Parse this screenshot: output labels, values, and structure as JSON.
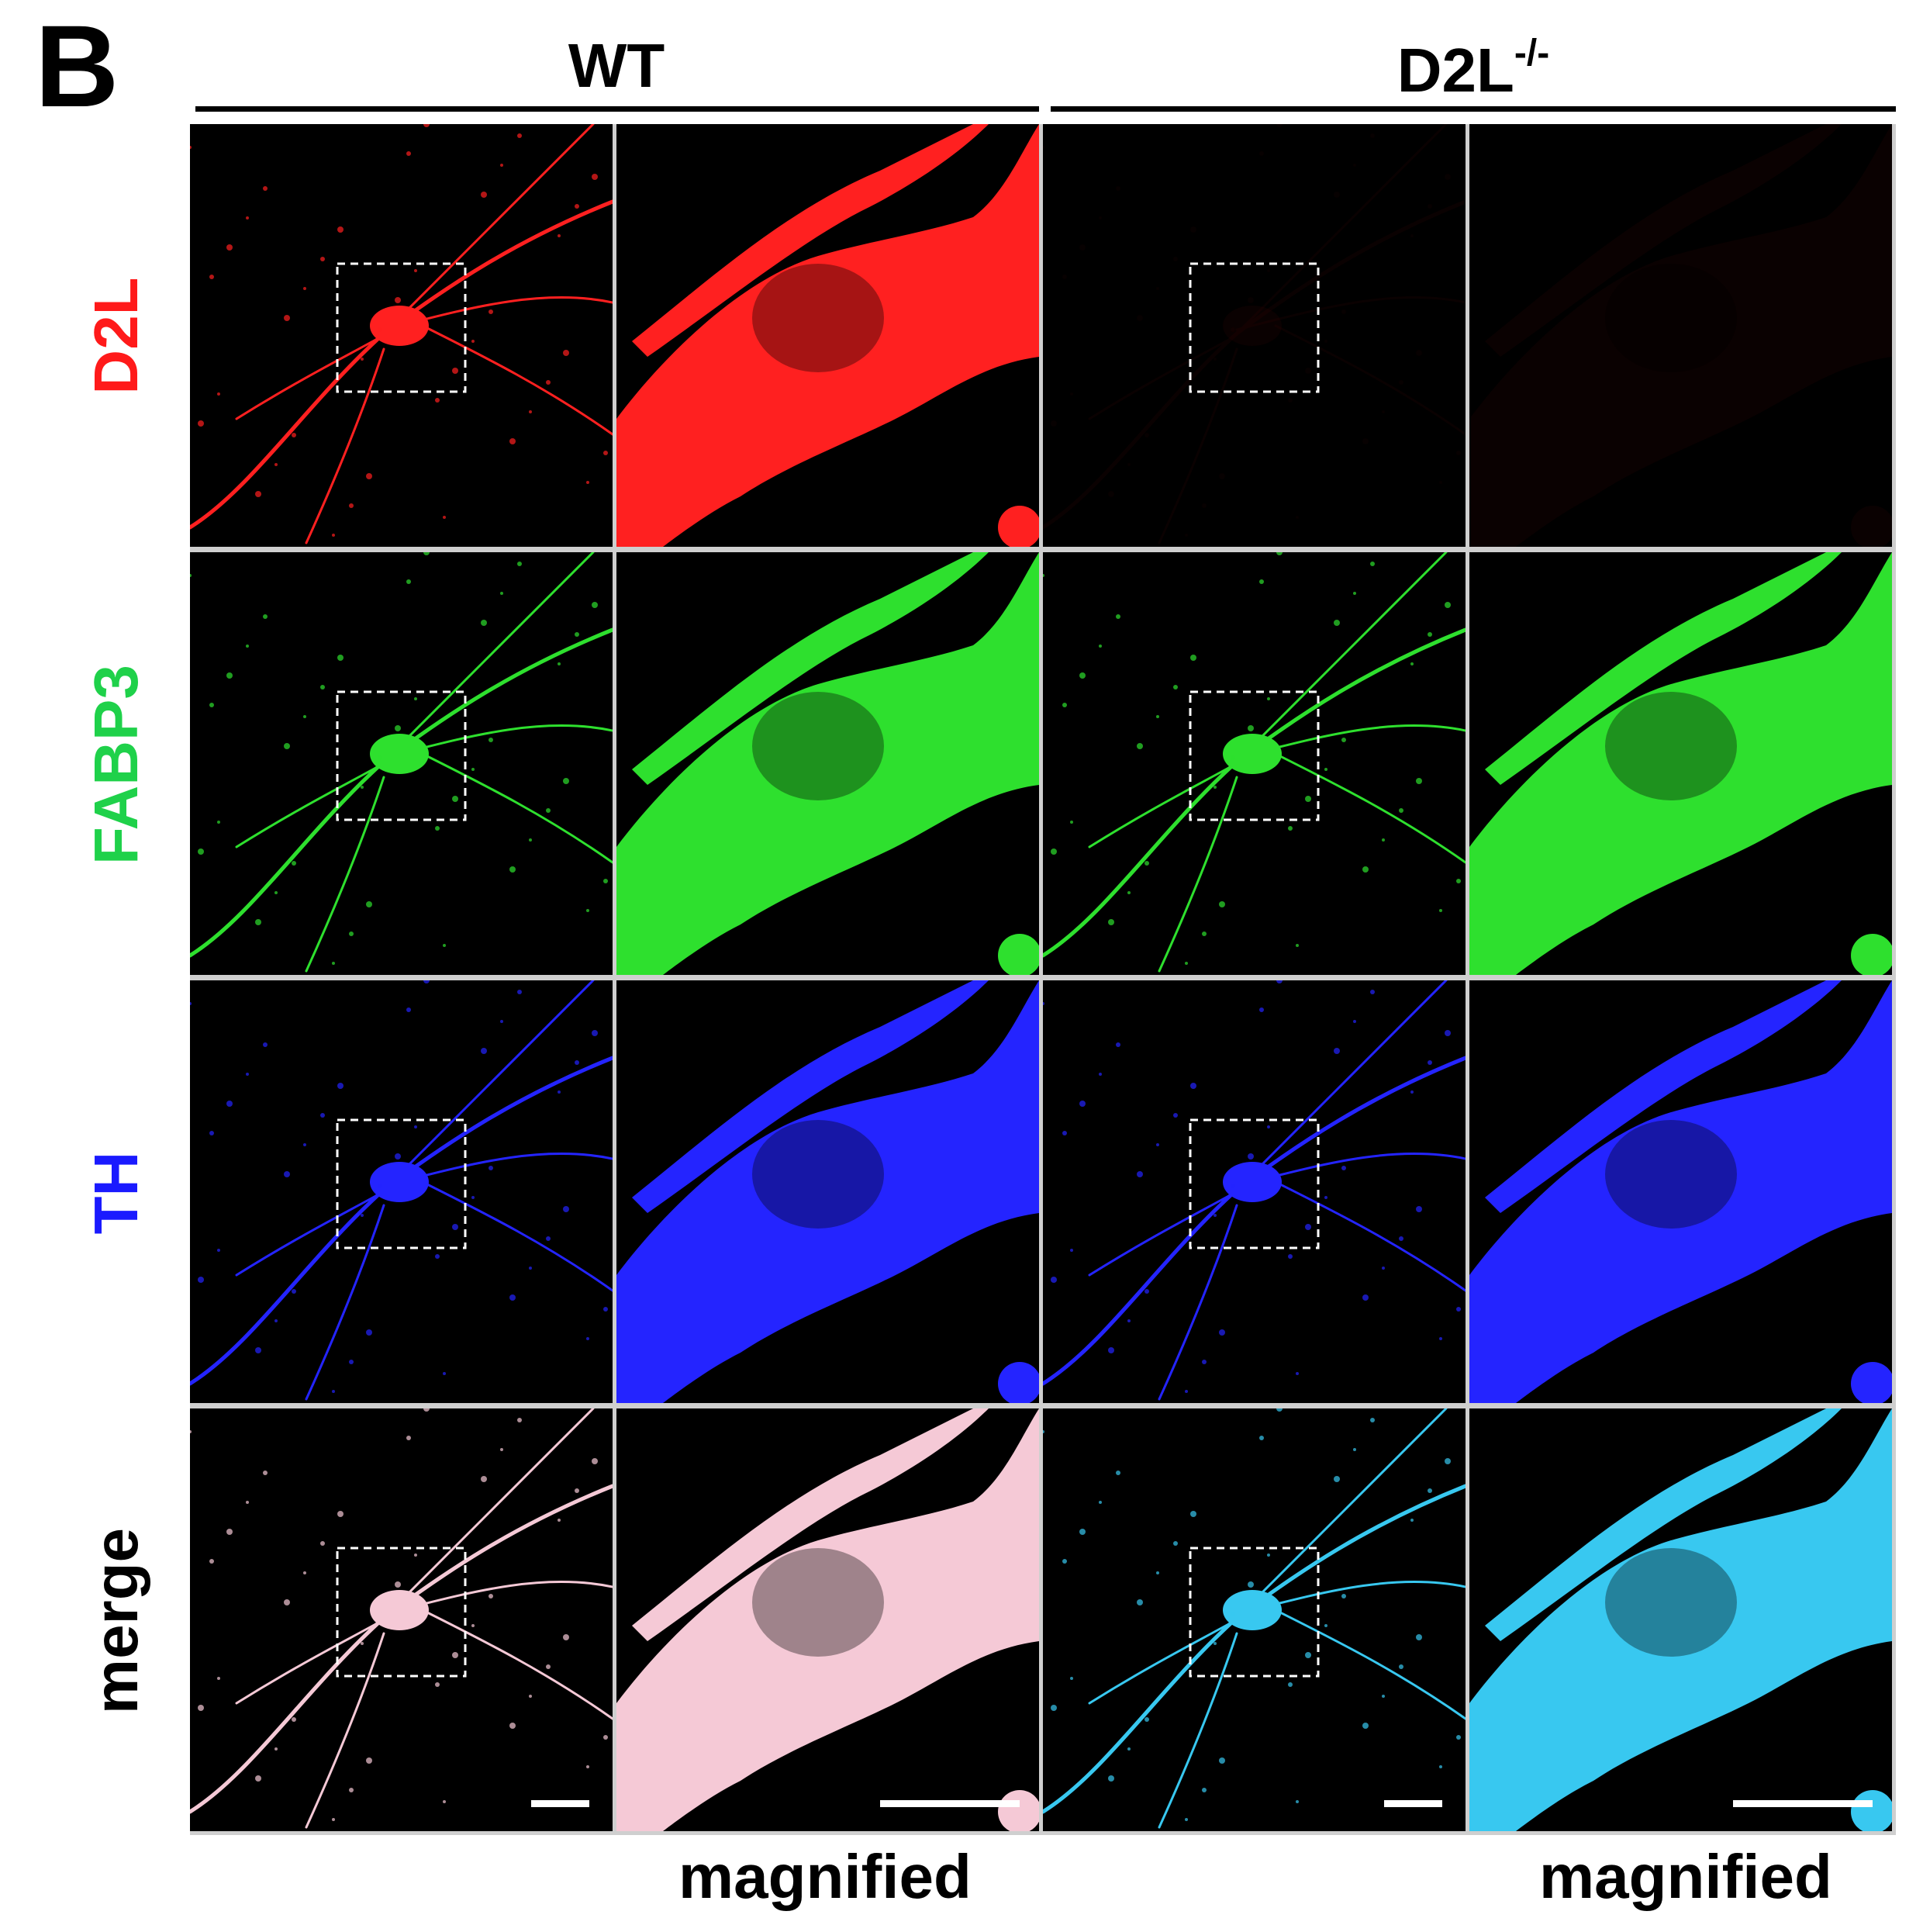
{
  "panel_label": "B",
  "groups": [
    {
      "label_main": "WT",
      "label_sup": ""
    },
    {
      "label_main": "D2L",
      "label_sup": "-/-"
    }
  ],
  "row_labels": [
    {
      "text": "D2L",
      "color": "#ff1a1a"
    },
    {
      "text": "FABP3",
      "color": "#1fd14a"
    },
    {
      "text": "TH",
      "color": "#1a1aff"
    },
    {
      "text": "merge",
      "color": "#000000"
    }
  ],
  "column_footer": [
    "magnified",
    "magnified"
  ],
  "channel_colors": {
    "D2L": "#ff2020",
    "FABP3": "#2ee02e",
    "TH": "#2424ff",
    "merge_wt": "#f5c9d6",
    "merge_ko": "#38c8f0"
  }
}
